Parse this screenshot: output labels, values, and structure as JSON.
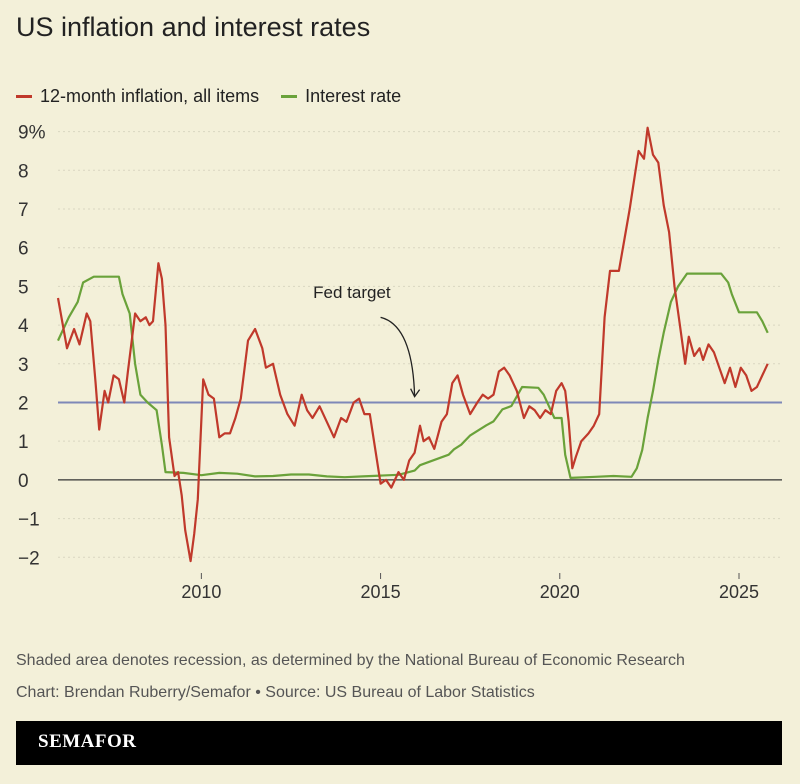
{
  "title": "US inflation and interest rates",
  "legend": {
    "inflation": "12-month inflation, all items",
    "interest": "Interest rate"
  },
  "colors": {
    "inflation": "#c0392b",
    "interest": "#6aa23a",
    "target": "#7e88b8",
    "background": "#f3f0d9"
  },
  "notes": {
    "recession": "Shaded area denotes recession, as determined by the National Bureau of Economic Research",
    "credit": "Chart: Brendan Ruberry/Semafor • Source: US Bureau of Labor Statistics"
  },
  "brand": "SEMAFOR",
  "chart_data": {
    "type": "line",
    "title": "US inflation and interest rates",
    "xlabel": "",
    "ylabel": "",
    "xlim": [
      2006.0,
      2026.2
    ],
    "ylim": [
      -2.2,
      9.3
    ],
    "x_ticks": [
      2010,
      2015,
      2020,
      2025
    ],
    "y_ticks": [
      -2,
      -1,
      0,
      1,
      2,
      3,
      4,
      5,
      6,
      7,
      8,
      9
    ],
    "y_tick_labels": [
      "−2",
      "−1",
      "0",
      "1",
      "2",
      "3",
      "4",
      "5",
      "6",
      "7",
      "8",
      "9%"
    ],
    "target": {
      "value": 2,
      "label": "Fed target"
    },
    "series": [
      {
        "name": "12-month inflation, all items",
        "x": [
          2006.0,
          2006.25,
          2006.45,
          2006.6,
          2006.8,
          2006.9,
          2007.05,
          2007.15,
          2007.3,
          2007.4,
          2007.55,
          2007.7,
          2007.85,
          2007.95,
          2008.15,
          2008.3,
          2008.45,
          2008.55,
          2008.65,
          2008.8,
          2008.9,
          2009.0,
          2009.1,
          2009.25,
          2009.35,
          2009.45,
          2009.55,
          2009.7,
          2009.8,
          2009.9,
          2010.05,
          2010.2,
          2010.35,
          2010.5,
          2010.65,
          2010.8,
          2010.95,
          2011.1,
          2011.3,
          2011.5,
          2011.7,
          2011.8,
          2012.0,
          2012.2,
          2012.4,
          2012.6,
          2012.8,
          2012.95,
          2013.1,
          2013.3,
          2013.5,
          2013.7,
          2013.9,
          2014.05,
          2014.25,
          2014.4,
          2014.55,
          2014.7,
          2014.85,
          2015.0,
          2015.15,
          2015.3,
          2015.5,
          2015.65,
          2015.8,
          2015.95,
          2016.1,
          2016.2,
          2016.35,
          2016.5,
          2016.7,
          2016.85,
          2017.0,
          2017.15,
          2017.3,
          2017.5,
          2017.7,
          2017.85,
          2018.0,
          2018.15,
          2018.3,
          2018.45,
          2018.6,
          2018.8,
          2019.0,
          2019.15,
          2019.3,
          2019.45,
          2019.6,
          2019.75,
          2019.9,
          2020.05,
          2020.15,
          2020.25,
          2020.35,
          2020.45,
          2020.6,
          2020.8,
          2020.95,
          2021.1,
          2021.25,
          2021.4,
          2021.5,
          2021.65,
          2021.8,
          2021.95,
          2022.1,
          2022.2,
          2022.35,
          2022.45,
          2022.6,
          2022.75,
          2022.9,
          2023.05,
          2023.2,
          2023.35,
          2023.5,
          2023.6,
          2023.75,
          2023.9,
          2024.0,
          2024.15,
          2024.3,
          2024.45,
          2024.6,
          2024.75,
          2024.9,
          2025.05,
          2025.2,
          2025.35,
          2025.5,
          2025.65,
          2025.8
        ],
        "values": [
          4.7,
          3.4,
          3.9,
          3.5,
          4.3,
          4.1,
          2.5,
          1.3,
          2.3,
          2.0,
          2.7,
          2.6,
          2.0,
          2.8,
          4.3,
          4.1,
          4.2,
          4.0,
          4.1,
          5.6,
          5.2,
          4.0,
          1.1,
          0.1,
          0.2,
          -0.4,
          -1.3,
          -2.1,
          -1.4,
          -0.5,
          2.6,
          2.2,
          2.1,
          1.1,
          1.2,
          1.2,
          1.6,
          2.1,
          3.6,
          3.9,
          3.4,
          2.9,
          3.0,
          2.2,
          1.7,
          1.4,
          2.2,
          1.8,
          1.6,
          1.9,
          1.5,
          1.1,
          1.6,
          1.5,
          2.0,
          2.1,
          1.7,
          1.7,
          0.8,
          -0.1,
          0.0,
          -0.2,
          0.2,
          0.0,
          0.5,
          0.7,
          1.4,
          1.0,
          1.1,
          0.8,
          1.5,
          1.7,
          2.5,
          2.7,
          2.2,
          1.7,
          2.0,
          2.2,
          2.1,
          2.2,
          2.8,
          2.9,
          2.7,
          2.3,
          1.6,
          1.9,
          1.8,
          1.6,
          1.8,
          1.7,
          2.3,
          2.5,
          2.3,
          1.5,
          0.3,
          0.6,
          1.0,
          1.2,
          1.4,
          1.7,
          4.2,
          5.4,
          5.4,
          5.4,
          6.2,
          7.0,
          7.9,
          8.5,
          8.3,
          9.1,
          8.4,
          8.2,
          7.1,
          6.4,
          5.0,
          4.0,
          3.0,
          3.7,
          3.2,
          3.4,
          3.1,
          3.5,
          3.3,
          2.9,
          2.5,
          2.9,
          2.4,
          2.9,
          2.7,
          2.3,
          2.4,
          2.7,
          3.0
        ]
      },
      {
        "name": "Interest rate",
        "x": [
          2006.0,
          2006.3,
          2006.55,
          2006.7,
          2007.0,
          2007.5,
          2007.7,
          2007.8,
          2008.0,
          2008.15,
          2008.3,
          2008.5,
          2008.75,
          2008.9,
          2009.0,
          2009.5,
          2010.0,
          2010.5,
          2011.0,
          2011.5,
          2012.0,
          2012.5,
          2013.0,
          2013.5,
          2014.0,
          2014.5,
          2015.0,
          2015.5,
          2015.95,
          2016.1,
          2016.9,
          2017.05,
          2017.25,
          2017.5,
          2017.95,
          2018.15,
          2018.4,
          2018.65,
          2018.95,
          2019.4,
          2019.55,
          2019.7,
          2019.85,
          2020.05,
          2020.15,
          2020.3,
          2021.0,
          2021.5,
          2022.0,
          2022.15,
          2022.3,
          2022.45,
          2022.6,
          2022.75,
          2022.9,
          2023.1,
          2023.3,
          2023.55,
          2024.0,
          2024.5,
          2024.7,
          2024.8,
          2025.0,
          2025.5,
          2025.65,
          2025.8
        ],
        "values": [
          3.6,
          4.2,
          4.6,
          5.1,
          5.25,
          5.25,
          5.25,
          4.8,
          4.3,
          3.0,
          2.2,
          2.0,
          1.8,
          0.9,
          0.2,
          0.18,
          0.12,
          0.18,
          0.16,
          0.09,
          0.1,
          0.14,
          0.14,
          0.09,
          0.07,
          0.09,
          0.11,
          0.13,
          0.24,
          0.38,
          0.65,
          0.79,
          0.91,
          1.15,
          1.41,
          1.51,
          1.82,
          1.91,
          2.4,
          2.38,
          2.2,
          1.9,
          1.6,
          1.6,
          0.65,
          0.05,
          0.08,
          0.1,
          0.08,
          0.3,
          0.77,
          1.6,
          2.3,
          3.1,
          3.8,
          4.6,
          5.0,
          5.33,
          5.33,
          5.33,
          5.1,
          4.8,
          4.33,
          4.33,
          4.1,
          3.8
        ]
      }
    ]
  }
}
